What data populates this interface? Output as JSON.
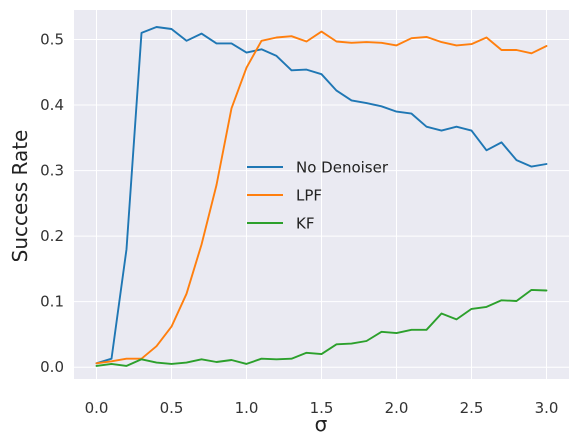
{
  "chart_data": {
    "type": "line",
    "xlabel": "σ",
    "ylabel": "Success Rate",
    "xlim": [
      -0.15,
      3.15
    ],
    "ylim": [
      -0.018,
      0.545
    ],
    "xticks": [
      "0.0",
      "0.5",
      "1.0",
      "1.5",
      "2.0",
      "2.5",
      "3.0"
    ],
    "yticks": [
      "0.0",
      "0.1",
      "0.2",
      "0.3",
      "0.4",
      "0.5"
    ],
    "grid": true,
    "legend_position": "center",
    "x": [
      0.0,
      0.1,
      0.2,
      0.3,
      0.4,
      0.5,
      0.6,
      0.7,
      0.8,
      0.9,
      1.0,
      1.1,
      1.2,
      1.3,
      1.4,
      1.5,
      1.6,
      1.7,
      1.8,
      1.9,
      2.0,
      2.1,
      2.2,
      2.3,
      2.4,
      2.5,
      2.6,
      2.7,
      2.8,
      2.9,
      3.0
    ],
    "series": [
      {
        "name": "No Denoiser",
        "color": "#1f77b4",
        "values": [
          0.006,
          0.013,
          0.18,
          0.51,
          0.519,
          0.516,
          0.498,
          0.509,
          0.494,
          0.494,
          0.48,
          0.485,
          0.475,
          0.453,
          0.454,
          0.447,
          0.422,
          0.407,
          0.403,
          0.398,
          0.39,
          0.387,
          0.367,
          0.361,
          0.367,
          0.361,
          0.331,
          0.343,
          0.316,
          0.306,
          0.31
        ]
      },
      {
        "name": "LPF",
        "color": "#ff7f0e",
        "values": [
          0.006,
          0.009,
          0.013,
          0.013,
          0.032,
          0.062,
          0.112,
          0.187,
          0.278,
          0.395,
          0.457,
          0.498,
          0.503,
          0.505,
          0.497,
          0.512,
          0.497,
          0.495,
          0.496,
          0.495,
          0.491,
          0.502,
          0.504,
          0.496,
          0.491,
          0.493,
          0.503,
          0.484,
          0.484,
          0.479,
          0.49
        ]
      },
      {
        "name": "KF",
        "color": "#2ca02c",
        "values": [
          0.002,
          0.005,
          0.002,
          0.012,
          0.007,
          0.005,
          0.007,
          0.012,
          0.008,
          0.011,
          0.005,
          0.013,
          0.012,
          0.013,
          0.022,
          0.02,
          0.035,
          0.036,
          0.04,
          0.054,
          0.052,
          0.057,
          0.057,
          0.082,
          0.073,
          0.089,
          0.092,
          0.102,
          0.101,
          0.118,
          0.117
        ]
      }
    ]
  }
}
